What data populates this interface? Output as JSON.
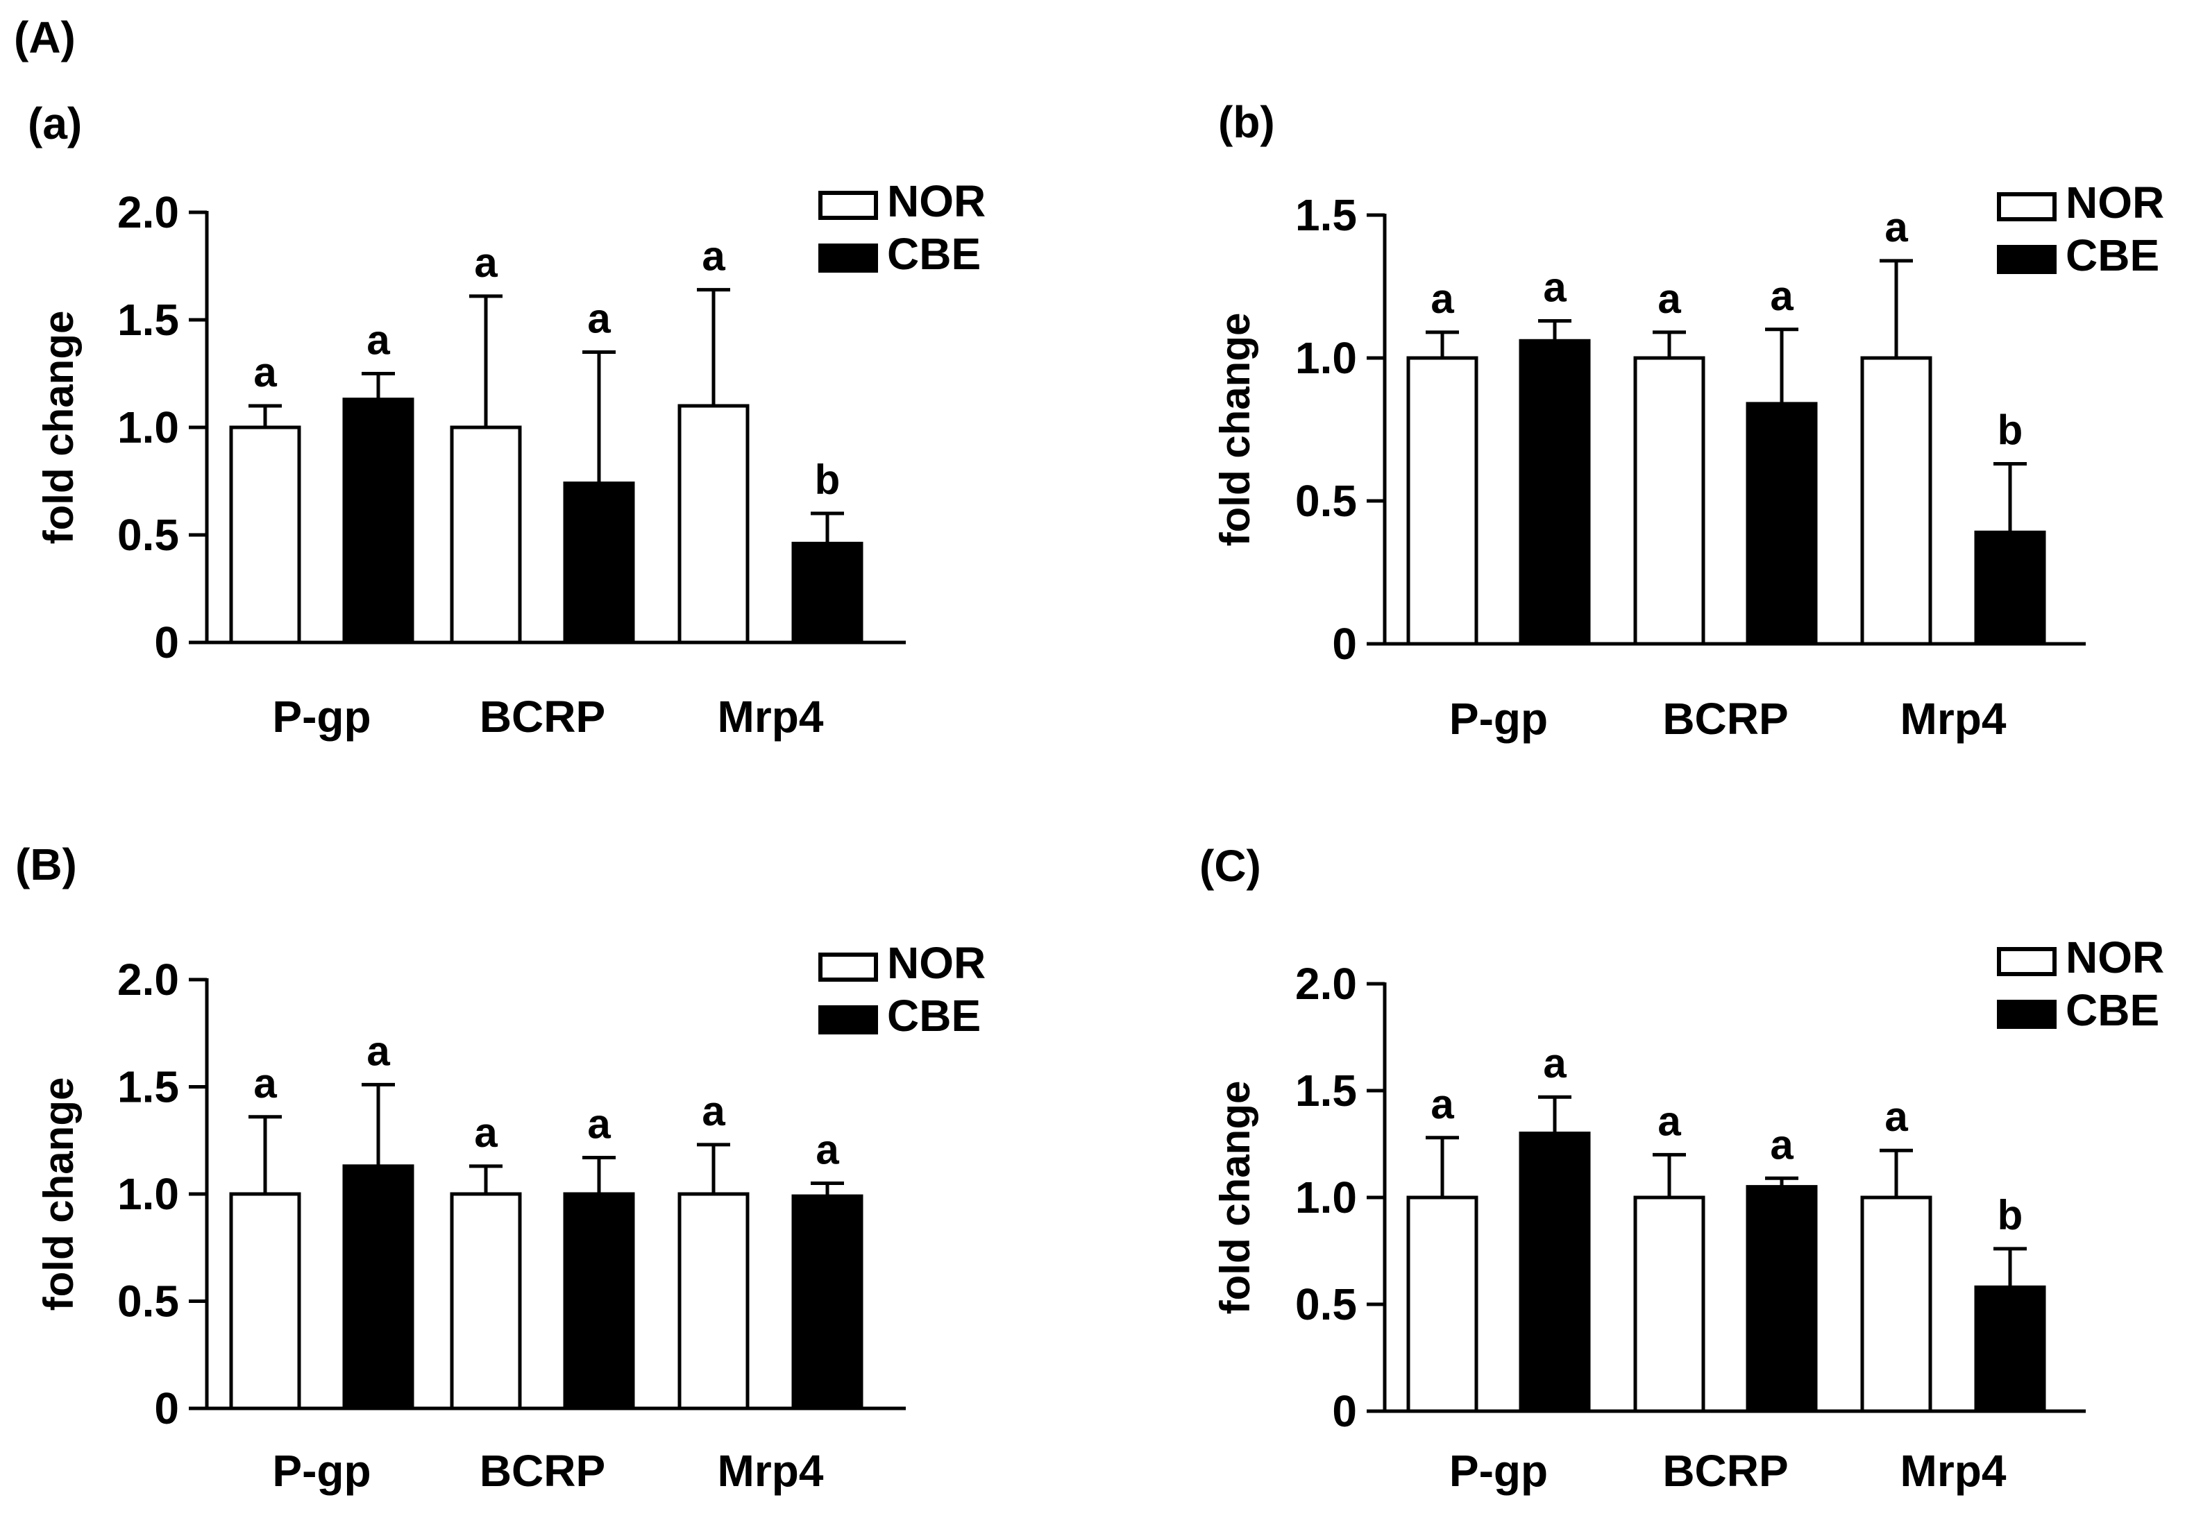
{
  "figure_label": "(A)",
  "chart_data": [
    {
      "panel_label": "(a)",
      "type": "bar",
      "ylabel": "fold change",
      "ylim": [
        0,
        2.0
      ],
      "yticks": [
        "0",
        "0.5",
        "1.0",
        "1.5",
        "2.0"
      ],
      "categories": [
        "P-gp",
        "BCRP",
        "Mrp4"
      ],
      "series": [
        {
          "name": "NOR",
          "fill": "#ffffff",
          "values": [
            1.0,
            1.0,
            1.1
          ],
          "errors": [
            0.1,
            0.61,
            0.54
          ],
          "sig": [
            "a",
            "a",
            "a"
          ]
        },
        {
          "name": "CBE",
          "fill": "#000000",
          "values": [
            1.13,
            0.74,
            0.46
          ],
          "errors": [
            0.12,
            0.61,
            0.14
          ],
          "sig": [
            "a",
            "a",
            "b"
          ]
        }
      ]
    },
    {
      "panel_label": "(b)",
      "type": "bar",
      "ylabel": "fold change",
      "ylim": [
        0,
        1.5
      ],
      "yticks": [
        "0",
        "0.5",
        "1.0",
        "1.5"
      ],
      "categories": [
        "P-gp",
        "BCRP",
        "Mrp4"
      ],
      "series": [
        {
          "name": "NOR",
          "fill": "#ffffff",
          "values": [
            1.0,
            1.0,
            1.0
          ],
          "errors": [
            0.09,
            0.09,
            0.34
          ],
          "sig": [
            "a",
            "a",
            "a"
          ]
        },
        {
          "name": "CBE",
          "fill": "#000000",
          "values": [
            1.06,
            0.84,
            0.39
          ],
          "errors": [
            0.07,
            0.26,
            0.24
          ],
          "sig": [
            "a",
            "a",
            "b"
          ]
        }
      ]
    },
    {
      "panel_label": "(B)",
      "type": "bar",
      "ylabel": "fold change",
      "ylim": [
        0,
        2.0
      ],
      "yticks": [
        "0",
        "0.5",
        "1.0",
        "1.5",
        "2.0"
      ],
      "categories": [
        "P-gp",
        "BCRP",
        "Mrp4"
      ],
      "series": [
        {
          "name": "NOR",
          "fill": "#ffffff",
          "values": [
            1.0,
            1.0,
            1.0
          ],
          "errors": [
            0.36,
            0.13,
            0.23
          ],
          "sig": [
            "a",
            "a",
            "a"
          ]
        },
        {
          "name": "CBE",
          "fill": "#000000",
          "values": [
            1.13,
            1.0,
            0.99
          ],
          "errors": [
            0.38,
            0.17,
            0.06
          ],
          "sig": [
            "a",
            "a",
            "a"
          ]
        }
      ]
    },
    {
      "panel_label": "(C)",
      "type": "bar",
      "ylabel": "fold change",
      "ylim": [
        0,
        2.0
      ],
      "yticks": [
        "0",
        "0.5",
        "1.0",
        "1.5",
        "2.0"
      ],
      "categories": [
        "P-gp",
        "BCRP",
        "Mrp4"
      ],
      "series": [
        {
          "name": "NOR",
          "fill": "#ffffff",
          "values": [
            1.0,
            1.0,
            1.0
          ],
          "errors": [
            0.28,
            0.2,
            0.22
          ],
          "sig": [
            "a",
            "a",
            "a"
          ]
        },
        {
          "name": "CBE",
          "fill": "#000000",
          "values": [
            1.3,
            1.05,
            0.58
          ],
          "errors": [
            0.17,
            0.04,
            0.18
          ],
          "sig": [
            "a",
            "a",
            "b"
          ]
        }
      ]
    }
  ]
}
